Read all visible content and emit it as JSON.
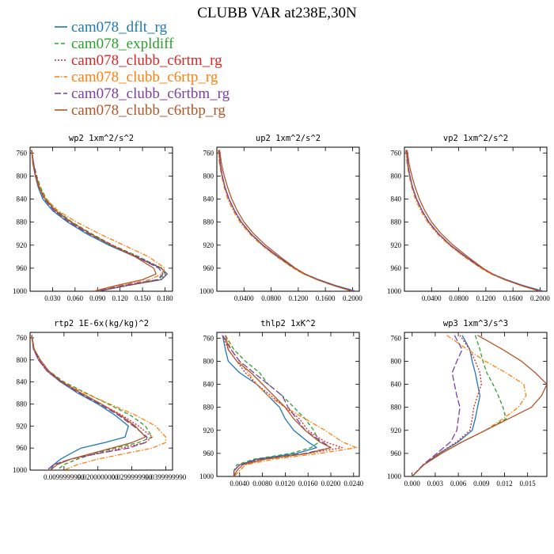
{
  "title": "CLUBB VAR at238E,30N",
  "legend": [
    {
      "name": "cam078_dflt_rg",
      "color": "#1f77b4",
      "dash": "solid"
    },
    {
      "name": "cam078_expldiff",
      "color": "#2ca02c",
      "dash": "dashed"
    },
    {
      "name": "cam078_clubb_c6rtm_rg",
      "color": "#d62728",
      "dash": "dotted"
    },
    {
      "name": "cam078_clubb_c6rtp_rg",
      "color": "#ff7f0e",
      "dash": "dashdot"
    },
    {
      "name": "cam078_clubb_c6rtbm_rg",
      "color": "#7b3fa0",
      "dash": "longdash"
    },
    {
      "name": "cam078_clubb_c6rtbp_rg",
      "color": "#b0562a",
      "dash": "solid"
    }
  ],
  "chart_data": [
    {
      "type": "line",
      "title": "wp2  1xm^2/s^2",
      "xlim": [
        0,
        0.19
      ],
      "ylim": [
        1000,
        750
      ],
      "yticks": [
        "760",
        "800",
        "840",
        "880",
        "920",
        "960",
        "1000"
      ],
      "xticks": [
        [
          0.03,
          "0.030"
        ],
        [
          0.06,
          "0.060"
        ],
        [
          0.09,
          "0.090"
        ],
        [
          0.12,
          "0.120"
        ],
        [
          0.15,
          "0.150"
        ],
        [
          0.18,
          "0.180"
        ]
      ],
      "y": [
        755,
        780,
        800,
        820,
        840,
        860,
        880,
        900,
        920,
        940,
        960,
        970,
        980,
        990,
        1000
      ],
      "series": [
        {
          "name": "cam078_dflt_rg",
          "values": [
            0.002,
            0.004,
            0.007,
            0.011,
            0.017,
            0.03,
            0.05,
            0.075,
            0.105,
            0.14,
            0.175,
            0.183,
            0.175,
            0.13,
            0.09
          ]
        },
        {
          "name": "cam078_expldiff",
          "values": [
            0.002,
            0.005,
            0.009,
            0.014,
            0.022,
            0.036,
            0.056,
            0.082,
            0.11,
            0.145,
            0.175,
            0.18,
            0.17,
            0.13,
            0.09
          ]
        },
        {
          "name": "cam078_clubb_c6rtm_rg",
          "values": [
            0.002,
            0.005,
            0.008,
            0.013,
            0.02,
            0.033,
            0.054,
            0.08,
            0.11,
            0.143,
            0.176,
            0.182,
            0.174,
            0.13,
            0.09
          ]
        },
        {
          "name": "cam078_clubb_c6rtp_rg",
          "values": [
            0.002,
            0.004,
            0.008,
            0.013,
            0.021,
            0.037,
            0.062,
            0.092,
            0.125,
            0.158,
            0.18,
            0.175,
            0.16,
            0.12,
            0.085
          ]
        },
        {
          "name": "cam078_clubb_c6rtbm_rg",
          "values": [
            0.002,
            0.005,
            0.008,
            0.012,
            0.019,
            0.032,
            0.052,
            0.078,
            0.108,
            0.142,
            0.172,
            0.177,
            0.17,
            0.125,
            0.09
          ]
        },
        {
          "name": "cam078_clubb_c6rtbp_rg",
          "values": [
            0.002,
            0.004,
            0.007,
            0.012,
            0.02,
            0.034,
            0.055,
            0.08,
            0.108,
            0.14,
            0.165,
            0.168,
            0.15,
            0.115,
            0.085
          ]
        }
      ]
    },
    {
      "type": "line",
      "title": "up2  1xm^2/s^2",
      "xlim": [
        0,
        0.21
      ],
      "ylim": [
        1000,
        750
      ],
      "yticks": [
        "760",
        "800",
        "840",
        "880",
        "920",
        "960",
        "1000"
      ],
      "xticks": [
        [
          0.04,
          "0.0400"
        ],
        [
          0.08,
          "0.0800"
        ],
        [
          0.12,
          "0.1200"
        ],
        [
          0.16,
          "0.1600"
        ],
        [
          0.2,
          "0.2000"
        ]
      ],
      "y": [
        755,
        780,
        800,
        820,
        840,
        860,
        880,
        900,
        920,
        940,
        960,
        970,
        980,
        990,
        1000
      ],
      "series": [
        {
          "name": "cam078_dflt_rg",
          "values": [
            0.003,
            0.005,
            0.008,
            0.012,
            0.018,
            0.026,
            0.036,
            0.05,
            0.068,
            0.09,
            0.115,
            0.13,
            0.15,
            0.175,
            0.205
          ]
        },
        {
          "name": "cam078_expldiff",
          "values": [
            0.003,
            0.005,
            0.008,
            0.012,
            0.018,
            0.026,
            0.036,
            0.05,
            0.067,
            0.089,
            0.113,
            0.128,
            0.148,
            0.172,
            0.2
          ]
        },
        {
          "name": "cam078_clubb_c6rtm_rg",
          "values": [
            0.003,
            0.005,
            0.008,
            0.012,
            0.018,
            0.026,
            0.036,
            0.05,
            0.068,
            0.09,
            0.114,
            0.129,
            0.149,
            0.173,
            0.202
          ]
        },
        {
          "name": "cam078_clubb_c6rtp_rg",
          "values": [
            0.002,
            0.004,
            0.007,
            0.011,
            0.016,
            0.024,
            0.034,
            0.048,
            0.066,
            0.088,
            0.113,
            0.128,
            0.148,
            0.172,
            0.2
          ]
        },
        {
          "name": "cam078_clubb_c6rtbm_rg",
          "values": [
            0.003,
            0.005,
            0.008,
            0.012,
            0.018,
            0.026,
            0.036,
            0.05,
            0.068,
            0.09,
            0.115,
            0.13,
            0.15,
            0.174,
            0.203
          ]
        },
        {
          "name": "cam078_clubb_c6rtbp_rg",
          "values": [
            0.004,
            0.007,
            0.011,
            0.016,
            0.022,
            0.03,
            0.04,
            0.054,
            0.072,
            0.093,
            0.116,
            0.13,
            0.148,
            0.172,
            0.2
          ]
        }
      ]
    },
    {
      "type": "line",
      "title": "vp2  1xm^2/s^2",
      "xlim": [
        0,
        0.21
      ],
      "ylim": [
        1000,
        750
      ],
      "yticks": [
        "760",
        "800",
        "840",
        "880",
        "920",
        "960",
        "1000"
      ],
      "xticks": [
        [
          0.04,
          "0.0400"
        ],
        [
          0.08,
          "0.0800"
        ],
        [
          0.12,
          "0.1200"
        ],
        [
          0.16,
          "0.1600"
        ],
        [
          0.2,
          "0.2000"
        ]
      ],
      "y": [
        755,
        780,
        800,
        820,
        840,
        860,
        880,
        900,
        920,
        940,
        960,
        970,
        980,
        990,
        1000
      ],
      "series": [
        {
          "name": "cam078_dflt_rg",
          "values": [
            0.003,
            0.005,
            0.008,
            0.012,
            0.018,
            0.026,
            0.036,
            0.05,
            0.068,
            0.09,
            0.115,
            0.13,
            0.15,
            0.175,
            0.205
          ]
        },
        {
          "name": "cam078_expldiff",
          "values": [
            0.003,
            0.005,
            0.008,
            0.012,
            0.018,
            0.026,
            0.036,
            0.05,
            0.067,
            0.089,
            0.113,
            0.128,
            0.148,
            0.172,
            0.2
          ]
        },
        {
          "name": "cam078_clubb_c6rtm_rg",
          "values": [
            0.003,
            0.005,
            0.008,
            0.012,
            0.018,
            0.026,
            0.036,
            0.05,
            0.068,
            0.09,
            0.114,
            0.129,
            0.149,
            0.173,
            0.202
          ]
        },
        {
          "name": "cam078_clubb_c6rtp_rg",
          "values": [
            0.002,
            0.004,
            0.007,
            0.011,
            0.016,
            0.024,
            0.034,
            0.048,
            0.066,
            0.088,
            0.113,
            0.128,
            0.148,
            0.172,
            0.2
          ]
        },
        {
          "name": "cam078_clubb_c6rtbm_rg",
          "values": [
            0.003,
            0.005,
            0.008,
            0.012,
            0.018,
            0.026,
            0.036,
            0.05,
            0.068,
            0.09,
            0.115,
            0.13,
            0.15,
            0.174,
            0.203
          ]
        },
        {
          "name": "cam078_clubb_c6rtbp_rg",
          "values": [
            0.004,
            0.007,
            0.011,
            0.016,
            0.022,
            0.03,
            0.04,
            0.054,
            0.072,
            0.093,
            0.116,
            0.13,
            0.148,
            0.172,
            0.2
          ]
        }
      ]
    },
    {
      "type": "line",
      "title": "rtp2  1E-6x(kg/kg)^2",
      "xlim": [
        0,
        0.042
      ],
      "ylim": [
        1000,
        750
      ],
      "yticks": [
        "760",
        "800",
        "840",
        "880",
        "920",
        "960",
        "1000"
      ],
      "xticks": [
        [
          0.01,
          "0.0099999990"
        ],
        [
          0.02,
          "0.0200000000"
        ],
        [
          0.03,
          "0.0299999990"
        ],
        [
          0.04,
          "0.0399999990"
        ]
      ],
      "y": [
        755,
        780,
        800,
        820,
        840,
        860,
        880,
        900,
        920,
        940,
        950,
        960,
        970,
        980,
        990,
        1000
      ],
      "series": [
        {
          "name": "cam078_dflt_rg",
          "values": [
            0.0005,
            0.001,
            0.0025,
            0.005,
            0.009,
            0.014,
            0.02,
            0.025,
            0.029,
            0.028,
            0.022,
            0.015,
            0.012,
            0.009,
            0.007,
            0.006
          ]
        },
        {
          "name": "cam078_expldiff",
          "values": [
            0.0005,
            0.0012,
            0.003,
            0.0055,
            0.01,
            0.0165,
            0.023,
            0.0295,
            0.034,
            0.036,
            0.032,
            0.025,
            0.019,
            0.014,
            0.01,
            0.008
          ]
        },
        {
          "name": "cam078_clubb_c6rtm_rg",
          "values": [
            0.0005,
            0.001,
            0.0028,
            0.0052,
            0.0095,
            0.015,
            0.021,
            0.027,
            0.032,
            0.036,
            0.034,
            0.027,
            0.02,
            0.012,
            0.007,
            0.005
          ]
        },
        {
          "name": "cam078_clubb_c6rtp_rg",
          "values": [
            0.0004,
            0.001,
            0.0025,
            0.005,
            0.0095,
            0.016,
            0.0235,
            0.031,
            0.037,
            0.04,
            0.04,
            0.036,
            0.028,
            0.02,
            0.014,
            0.01
          ]
        },
        {
          "name": "cam078_clubb_c6rtbm_rg",
          "values": [
            0.0005,
            0.001,
            0.0025,
            0.005,
            0.009,
            0.0145,
            0.0205,
            0.026,
            0.0305,
            0.0345,
            0.034,
            0.029,
            0.02,
            0.012,
            0.007,
            0.005
          ]
        },
        {
          "name": "cam078_clubb_c6rtbp_rg",
          "values": [
            0.0005,
            0.0012,
            0.003,
            0.0055,
            0.0095,
            0.015,
            0.021,
            0.0265,
            0.031,
            0.034,
            0.03,
            0.024,
            0.018,
            0.012,
            0.008,
            0.006
          ]
        }
      ]
    },
    {
      "type": "line",
      "title": "thlp2  1xK^2",
      "xlim": [
        0,
        0.025
      ],
      "ylim": [
        1000,
        750
      ],
      "yticks": [
        "760",
        "800",
        "840",
        "880",
        "920",
        "960",
        "1000"
      ],
      "xticks": [
        [
          0.004,
          "0.0040"
        ],
        [
          0.008,
          "0.0080"
        ],
        [
          0.012,
          "0.0120"
        ],
        [
          0.016,
          "0.0160"
        ],
        [
          0.02,
          "0.0200"
        ],
        [
          0.024,
          "0.0240"
        ]
      ],
      "y": [
        755,
        780,
        800,
        820,
        840,
        860,
        880,
        900,
        920,
        940,
        950,
        960,
        970,
        980,
        990,
        1000
      ],
      "series": [
        {
          "name": "cam078_dflt_rg",
          "values": [
            0.001,
            0.0015,
            0.002,
            0.004,
            0.007,
            0.009,
            0.011,
            0.012,
            0.0135,
            0.016,
            0.0175,
            0.014,
            0.007,
            0.004,
            0.003,
            0.003
          ]
        },
        {
          "name": "cam078_expldiff",
          "values": [
            0.0015,
            0.003,
            0.005,
            0.0075,
            0.009,
            0.0115,
            0.0135,
            0.0155,
            0.017,
            0.018,
            0.0165,
            0.013,
            0.0065,
            0.0035,
            0.003,
            0.003
          ]
        },
        {
          "name": "cam078_clubb_c6rtm_rg",
          "values": [
            0.001,
            0.002,
            0.0035,
            0.005,
            0.007,
            0.0095,
            0.012,
            0.0145,
            0.016,
            0.019,
            0.022,
            0.016,
            0.008,
            0.004,
            0.003,
            0.003
          ]
        },
        {
          "name": "cam078_clubb_c6rtp_rg",
          "values": [
            0.0015,
            0.0025,
            0.004,
            0.0055,
            0.007,
            0.009,
            0.012,
            0.0155,
            0.019,
            0.022,
            0.0245,
            0.018,
            0.01,
            0.005,
            0.004,
            0.003
          ]
        },
        {
          "name": "cam078_clubb_c6rtbm_rg",
          "values": [
            0.001,
            0.0025,
            0.004,
            0.0065,
            0.009,
            0.0115,
            0.0125,
            0.014,
            0.0155,
            0.0185,
            0.02,
            0.0155,
            0.0075,
            0.004,
            0.003,
            0.003
          ]
        },
        {
          "name": "cam078_clubb_c6rtbp_rg",
          "values": [
            0.0015,
            0.002,
            0.0035,
            0.006,
            0.008,
            0.01,
            0.012,
            0.0135,
            0.0155,
            0.018,
            0.02,
            0.016,
            0.0085,
            0.0045,
            0.0035,
            0.003
          ]
        }
      ]
    },
    {
      "type": "line",
      "title": "wp3  1xm^3/s^3",
      "xlim": [
        -0.001,
        0.0175
      ],
      "ylim": [
        1000,
        750
      ],
      "yticks": [
        "760",
        "800",
        "840",
        "880",
        "920",
        "960",
        "1000"
      ],
      "xticks": [
        [
          0,
          "0.000"
        ],
        [
          0.003,
          "0.003"
        ],
        [
          0.006,
          "0.006"
        ],
        [
          0.009,
          "0.009"
        ],
        [
          0.012,
          "0.012"
        ],
        [
          0.015,
          "0.015"
        ]
      ],
      "y": [
        755,
        780,
        800,
        820,
        840,
        860,
        880,
        900,
        920,
        940,
        960,
        980,
        1000
      ],
      "series": [
        {
          "name": "cam078_dflt_rg",
          "values": [
            0.0065,
            0.0075,
            0.0078,
            0.0082,
            0.0085,
            0.0088,
            0.0085,
            0.0082,
            0.0078,
            0.006,
            0.0035,
            0.0015,
            0.0
          ]
        },
        {
          "name": "cam078_expldiff",
          "values": [
            0.0082,
            0.0088,
            0.0092,
            0.0097,
            0.0105,
            0.0112,
            0.0118,
            0.0122,
            0.0095,
            0.0065,
            0.0038,
            0.0015,
            0.0
          ]
        },
        {
          "name": "cam078_clubb_c6rtm_rg",
          "values": [
            0.0062,
            0.0075,
            0.0082,
            0.0088,
            0.009,
            0.0085,
            0.008,
            0.0078,
            0.0075,
            0.0058,
            0.0035,
            0.0015,
            0.0
          ]
        },
        {
          "name": "cam078_clubb_c6rtp_rg",
          "values": [
            0.0045,
            0.0072,
            0.0095,
            0.0122,
            0.0145,
            0.0148,
            0.0138,
            0.0118,
            0.0095,
            0.0065,
            0.0038,
            0.0015,
            0.0
          ]
        },
        {
          "name": "cam078_clubb_c6rtbm_rg",
          "values": [
            0.0055,
            0.0065,
            0.0058,
            0.0052,
            0.0055,
            0.0058,
            0.0062,
            0.006,
            0.0058,
            0.005,
            0.0032,
            0.0014,
            0.0
          ]
        },
        {
          "name": "cam078_clubb_c6rtbp_rg",
          "values": [
            0.0085,
            0.0118,
            0.0142,
            0.016,
            0.0175,
            0.0168,
            0.0155,
            0.0125,
            0.0095,
            0.0065,
            0.0038,
            0.0015,
            0.0
          ]
        }
      ]
    }
  ]
}
